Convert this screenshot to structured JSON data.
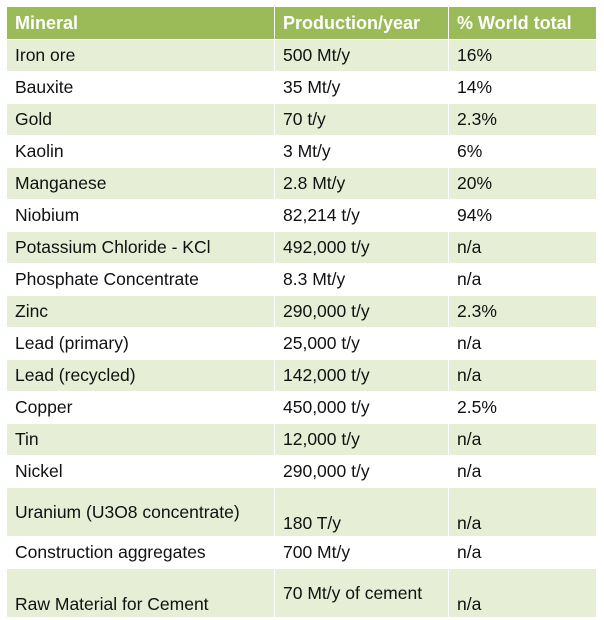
{
  "table": {
    "headers": [
      "Mineral",
      "Production/year",
      "% World total"
    ],
    "rows": [
      {
        "mineral": "Iron ore",
        "production": "500 Mt/y",
        "share": "16%"
      },
      {
        "mineral": "Bauxite",
        "production": "35 Mt/y",
        "share": "14%"
      },
      {
        "mineral": "Gold",
        "production": "70 t/y",
        "share": "2.3%"
      },
      {
        "mineral": "Kaolin",
        "production": "3 Mt/y",
        "share": "6%"
      },
      {
        "mineral": "Manganese",
        "production": "2.8 Mt/y",
        "share": "20%"
      },
      {
        "mineral": "Niobium",
        "production": "82,214 t/y",
        "share": "94%"
      },
      {
        "mineral": "Potassium Chloride - KCl",
        "production": "492,000 t/y",
        "share": "n/a"
      },
      {
        "mineral": "Phosphate Concentrate",
        "production": "8.3 Mt/y",
        "share": "n/a"
      },
      {
        "mineral": "Zinc",
        "production": "290,000 t/y",
        "share": "2.3%"
      },
      {
        "mineral": "Lead (primary)",
        "production": "25,000 t/y",
        "share": "n/a"
      },
      {
        "mineral": "Lead (recycled)",
        "production": "142,000 t/y",
        "share": "n/a"
      },
      {
        "mineral": "Copper",
        "production": "450,000 t/y",
        "share": "2.5%"
      },
      {
        "mineral": "Tin",
        "production": "12,000 t/y",
        "share": "n/a"
      },
      {
        "mineral": "Nickel",
        "production": "290,000 t/y",
        "share": "n/a"
      },
      {
        "mineral": "Uranium (U3O8 concentrate)",
        "production": "180 T/y",
        "share": "n/a"
      },
      {
        "mineral": "Construction aggregates",
        "production": "700 Mt/y",
        "share": "n/a"
      },
      {
        "mineral": "Raw Material for Cement",
        "production": "70 Mt/y of cement",
        "share": "n/a"
      }
    ]
  },
  "colors": {
    "header_bg": "#9bbb59",
    "header_text": "#ffffff",
    "band_odd": "#e6eed5",
    "band_even": "#ffffff"
  }
}
